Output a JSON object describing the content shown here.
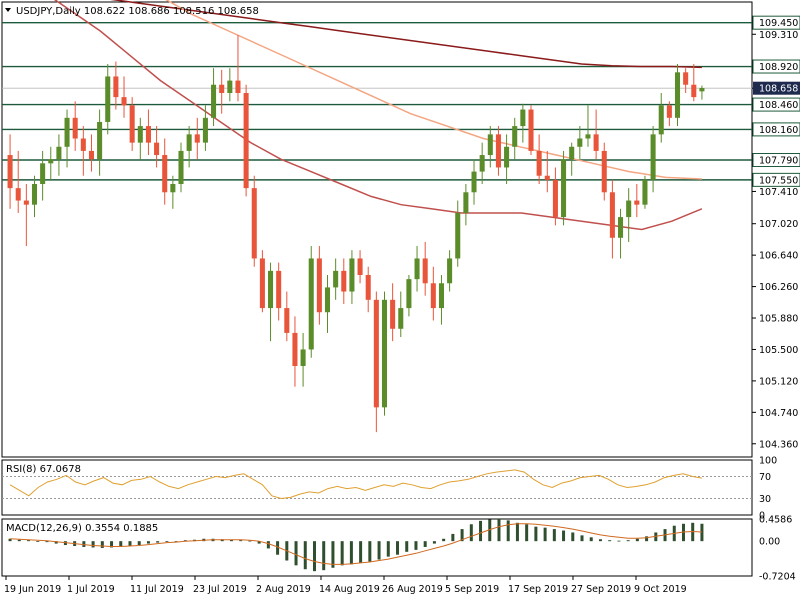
{
  "title_text": "USDJPY,Daily  108.622 108.686 108.516 108.658",
  "colors": {
    "bull": "#5b8c2a",
    "bear": "#e8553a",
    "ma_long": "#8b1a1a",
    "ma_mid": "#f4a582",
    "ma_short": "#c0504d",
    "level_line": "#1e5a3c",
    "current_price_label_bg": "#1e2a4e",
    "rsi_line": "#e0a030",
    "macd_hist": "#2f4f2f",
    "macd_signal": "#d2691e"
  },
  "chart_data": [
    {
      "type": "candlestick",
      "title": "USDJPY,Daily",
      "ohlc_readout": {
        "open": 108.622,
        "high": 108.686,
        "low": 108.516,
        "close": 108.658
      },
      "current_price": "108.658",
      "y_ticks": [
        "109.310",
        "108.920",
        "108.658",
        "108.460",
        "108.160",
        "107.790",
        "107.550",
        "107.410",
        "107.020",
        "106.640",
        "106.260",
        "105.880",
        "105.500",
        "105.120",
        "104.740",
        "104.360"
      ],
      "highlighted_levels": [
        "109.450",
        "108.920",
        "108.460",
        "108.160",
        "107.790",
        "107.550"
      ],
      "x_labels": [
        "19 Jun 2019",
        "1 Jul 2019",
        "11 Jul 2019",
        "23 Jul 2019",
        "2 Aug 2019",
        "14 Aug 2019",
        "26 Aug 2019",
        "5 Sep 2019",
        "17 Sep 2019",
        "27 Sep 2019",
        "9 Oct 2019"
      ],
      "ylim": [
        104.2,
        109.7
      ],
      "candles": [
        [
          107.85,
          108.1,
          107.2,
          107.45
        ],
        [
          107.45,
          107.9,
          107.15,
          107.3
        ],
        [
          107.3,
          107.5,
          106.75,
          107.25
        ],
        [
          107.25,
          107.6,
          107.1,
          107.5
        ],
        [
          107.5,
          107.9,
          107.3,
          107.75
        ],
        [
          107.75,
          107.95,
          107.55,
          107.8
        ],
        [
          107.8,
          108.1,
          107.6,
          107.95
        ],
        [
          107.95,
          108.4,
          107.7,
          108.3
        ],
        [
          108.3,
          108.5,
          107.9,
          108.05
        ],
        [
          108.05,
          108.2,
          107.6,
          107.9
        ],
        [
          107.9,
          108.1,
          107.65,
          107.8
        ],
        [
          107.8,
          108.4,
          107.6,
          108.25
        ],
        [
          108.25,
          108.95,
          108.1,
          108.8
        ],
        [
          108.8,
          108.98,
          108.4,
          108.55
        ],
        [
          108.55,
          108.8,
          108.3,
          108.45
        ],
        [
          108.45,
          108.55,
          107.9,
          108.0
        ],
        [
          108.0,
          108.3,
          107.8,
          108.2
        ],
        [
          108.2,
          108.4,
          107.85,
          108.0
        ],
        [
          108.0,
          108.2,
          107.7,
          107.85
        ],
        [
          107.85,
          108.05,
          107.25,
          107.4
        ],
        [
          107.4,
          107.6,
          107.2,
          107.5
        ],
        [
          107.5,
          108.0,
          107.4,
          107.9
        ],
        [
          107.9,
          108.2,
          107.7,
          108.1
        ],
        [
          108.1,
          108.3,
          107.8,
          108.0
        ],
        [
          108.0,
          108.45,
          107.9,
          108.3
        ],
        [
          108.3,
          108.9,
          108.2,
          108.7
        ],
        [
          108.7,
          108.88,
          108.35,
          108.6
        ],
        [
          108.6,
          108.9,
          108.5,
          108.75
        ],
        [
          108.75,
          109.3,
          108.5,
          108.6
        ],
        [
          108.6,
          108.7,
          107.35,
          107.45
        ],
        [
          107.45,
          107.6,
          106.5,
          106.6
        ],
        [
          106.6,
          106.7,
          105.95,
          106.0
        ],
        [
          106.0,
          106.55,
          105.6,
          106.45
        ],
        [
          106.45,
          106.55,
          105.85,
          106.0
        ],
        [
          106.0,
          106.2,
          105.6,
          105.7
        ],
        [
          105.7,
          105.9,
          105.05,
          105.3
        ],
        [
          105.3,
          105.7,
          105.05,
          105.5
        ],
        [
          105.5,
          106.75,
          105.4,
          106.6
        ],
        [
          106.6,
          106.75,
          105.8,
          105.95
        ],
        [
          105.95,
          106.4,
          105.7,
          106.25
        ],
        [
          106.25,
          106.6,
          106.1,
          106.45
        ],
        [
          106.45,
          106.6,
          106.05,
          106.2
        ],
        [
          106.2,
          106.7,
          106.05,
          106.6
        ],
        [
          106.6,
          106.7,
          106.3,
          106.4
        ],
        [
          106.4,
          106.5,
          105.95,
          106.1
        ],
        [
          106.1,
          106.2,
          104.5,
          104.8
        ],
        [
          104.8,
          106.2,
          104.7,
          106.1
        ],
        [
          106.1,
          106.3,
          105.6,
          105.75
        ],
        [
          105.75,
          106.2,
          105.65,
          106.0
        ],
        [
          106.0,
          106.4,
          105.9,
          106.35
        ],
        [
          106.35,
          106.75,
          106.2,
          106.6
        ],
        [
          106.6,
          106.8,
          106.15,
          106.3
        ],
        [
          106.3,
          106.5,
          105.85,
          106.0
        ],
        [
          106.0,
          106.4,
          105.8,
          106.3
        ],
        [
          106.3,
          106.7,
          106.2,
          106.6
        ],
        [
          106.6,
          107.3,
          106.5,
          107.15
        ],
        [
          107.15,
          107.5,
          107.0,
          107.4
        ],
        [
          107.4,
          107.8,
          107.25,
          107.65
        ],
        [
          107.65,
          108.0,
          107.5,
          107.85
        ],
        [
          107.85,
          108.2,
          107.7,
          108.1
        ],
        [
          108.1,
          108.2,
          107.6,
          107.7
        ],
        [
          107.7,
          108.1,
          107.5,
          107.95
        ],
        [
          107.95,
          108.3,
          107.8,
          108.2
        ],
        [
          108.2,
          108.47,
          108.0,
          108.4
        ],
        [
          108.4,
          108.45,
          107.85,
          107.9
        ],
        [
          107.9,
          108.1,
          107.5,
          107.6
        ],
        [
          107.6,
          107.9,
          107.4,
          107.55
        ],
        [
          107.55,
          107.7,
          107.0,
          107.1
        ],
        [
          107.1,
          107.9,
          107.0,
          107.8
        ],
        [
          107.8,
          108.0,
          107.6,
          107.95
        ],
        [
          107.95,
          108.2,
          107.8,
          108.05
        ],
        [
          108.05,
          108.45,
          107.95,
          108.1
        ],
        [
          108.1,
          108.4,
          107.8,
          107.9
        ],
        [
          107.9,
          108.0,
          107.3,
          107.4
        ],
        [
          107.4,
          107.55,
          106.6,
          106.85
        ],
        [
          106.85,
          107.2,
          106.6,
          107.1
        ],
        [
          107.1,
          107.45,
          106.8,
          107.3
        ],
        [
          107.3,
          107.5,
          107.1,
          107.25
        ],
        [
          107.25,
          107.6,
          107.2,
          107.55
        ],
        [
          107.55,
          108.2,
          107.4,
          108.1
        ],
        [
          108.1,
          108.6,
          108.0,
          108.45
        ],
        [
          108.45,
          108.5,
          108.2,
          108.3
        ],
        [
          108.3,
          108.95,
          108.2,
          108.85
        ],
        [
          108.85,
          108.9,
          108.6,
          108.7
        ],
        [
          108.7,
          108.95,
          108.5,
          108.55
        ],
        [
          108.62,
          108.69,
          108.52,
          108.66
        ]
      ],
      "moving_averages": [
        {
          "values": [
            109.9,
            109.85,
            109.8,
            109.75,
            109.7,
            109.65,
            109.6,
            109.55,
            109.5,
            109.45,
            109.4,
            109.35,
            109.3,
            109.25,
            109.2,
            109.15,
            109.1,
            109.05,
            109.0,
            108.95,
            108.93,
            108.92,
            108.92,
            108.91
          ]
        },
        {
          "values": [
            110.8,
            110.55,
            110.3,
            110.05,
            109.8,
            109.55,
            109.35,
            109.15,
            108.95,
            108.75,
            108.55,
            108.35,
            108.2,
            108.05,
            107.95,
            107.85,
            107.75,
            107.65,
            107.58,
            107.56
          ]
        },
        {
          "values": [
            110.05,
            109.85,
            109.6,
            109.35,
            109.05,
            108.75,
            108.5,
            108.25,
            108.0,
            107.8,
            107.65,
            107.5,
            107.35,
            107.25,
            107.2,
            107.15,
            107.15,
            107.15,
            107.1,
            107.05,
            107.0,
            106.95,
            107.05,
            107.2
          ]
        }
      ]
    },
    {
      "type": "line",
      "title": "RSI(8) 67.0678",
      "y_ticks": [
        "100",
        "70",
        "30",
        "0"
      ],
      "ylim": [
        0,
        100
      ],
      "values": [
        55,
        45,
        35,
        50,
        60,
        65,
        72,
        60,
        55,
        62,
        68,
        58,
        55,
        63,
        65,
        70,
        60,
        52,
        48,
        55,
        60,
        65,
        70,
        68,
        72,
        75,
        65,
        55,
        35,
        30,
        32,
        38,
        42,
        40,
        48,
        52,
        48,
        50,
        45,
        50,
        55,
        52,
        58,
        55,
        50,
        48,
        55,
        60,
        62,
        65,
        70,
        75,
        78,
        80,
        82,
        78,
        65,
        55,
        50,
        58,
        62,
        68,
        70,
        72,
        65,
        55,
        50,
        52,
        55,
        60,
        68,
        72,
        75,
        70,
        67
      ]
    },
    {
      "type": "bar",
      "title": "MACD(12,26,9) 0.3554 0.1885",
      "y_ticks": [
        "0.4586",
        "0.00",
        "-0.7204"
      ],
      "ylim": [
        -0.7204,
        0.4586
      ],
      "values": [
        0.05,
        0.03,
        0.02,
        0.0,
        -0.02,
        -0.05,
        -0.08,
        -0.1,
        -0.12,
        -0.13,
        -0.14,
        -0.13,
        -0.12,
        -0.1,
        -0.08,
        -0.05,
        -0.03,
        -0.01,
        0.0,
        0.02,
        0.03,
        0.05,
        0.05,
        0.04,
        0.03,
        0.02,
        0.01,
        -0.05,
        -0.15,
        -0.28,
        -0.4,
        -0.5,
        -0.58,
        -0.62,
        -0.6,
        -0.55,
        -0.5,
        -0.48,
        -0.45,
        -0.42,
        -0.38,
        -0.32,
        -0.28,
        -0.22,
        -0.18,
        -0.12,
        -0.05,
        0.05,
        0.15,
        0.25,
        0.35,
        0.42,
        0.45,
        0.46,
        0.43,
        0.38,
        0.35,
        0.3,
        0.28,
        0.25,
        0.22,
        0.18,
        0.12,
        0.08,
        0.04,
        0.02,
        0.01,
        0.02,
        0.05,
        0.1,
        0.18,
        0.25,
        0.32,
        0.36,
        0.38,
        0.36
      ],
      "signal": [
        0.05,
        0.04,
        0.03,
        0.02,
        0.01,
        -0.01,
        -0.03,
        -0.05,
        -0.07,
        -0.09,
        -0.1,
        -0.11,
        -0.11,
        -0.1,
        -0.09,
        -0.07,
        -0.05,
        -0.03,
        -0.02,
        0.0,
        0.01,
        0.02,
        0.03,
        0.03,
        0.03,
        0.03,
        0.02,
        0.0,
        -0.05,
        -0.12,
        -0.2,
        -0.28,
        -0.36,
        -0.42,
        -0.46,
        -0.48,
        -0.48,
        -0.47,
        -0.45,
        -0.43,
        -0.4,
        -0.37,
        -0.33,
        -0.29,
        -0.25,
        -0.2,
        -0.15,
        -0.1,
        -0.04,
        0.03,
        0.1,
        0.17,
        0.24,
        0.3,
        0.34,
        0.36,
        0.36,
        0.35,
        0.33,
        0.31,
        0.28,
        0.25,
        0.21,
        0.17,
        0.13,
        0.1,
        0.08,
        0.06,
        0.06,
        0.07,
        0.1,
        0.13,
        0.16,
        0.19,
        0.2,
        0.19
      ]
    }
  ]
}
